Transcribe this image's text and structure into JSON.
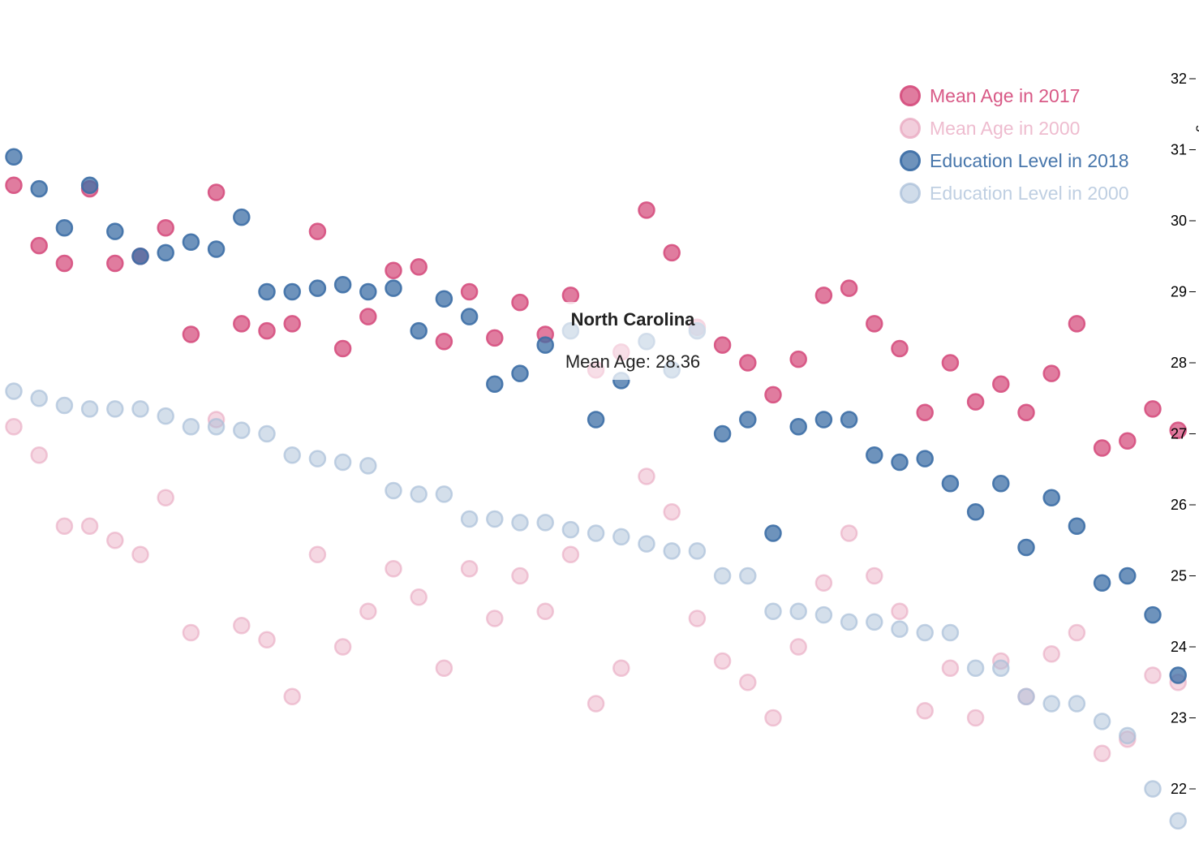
{
  "colors": {
    "mean_age_2017": "#d6507f",
    "mean_age_2000": "#e8a6bf",
    "education_2018": "#3d6fa6",
    "education_2000": "#a9bfd8",
    "axis": "#000000",
    "tooltip_text": "#222222"
  },
  "legend": {
    "items": [
      {
        "label": "Mean Age in 2017",
        "color": "#d6507f",
        "opacity": 0.75
      },
      {
        "label": "Mean Age in 2000",
        "color": "#e8a6bf",
        "opacity": 0.55
      },
      {
        "label": "Education Level in 2018",
        "color": "#3d6fa6",
        "opacity": 0.75
      },
      {
        "label": "Education Level in 2000",
        "color": "#a9bfd8",
        "opacity": 0.55
      }
    ]
  },
  "tooltip": {
    "state": "North Carolina",
    "text": "Mean Age: 28.36"
  },
  "chart_data": {
    "type": "scatter",
    "ylabel": "Mean Age",
    "y_ticks": [
      "22",
      "23",
      "24",
      "25",
      "26",
      "27",
      "28",
      "29",
      "30",
      "31",
      "32"
    ],
    "ylim": [
      21.5,
      32
    ],
    "x_count": 47,
    "series": [
      {
        "name": "Mean Age in 2017",
        "values": [
          30.5,
          29.65,
          29.4,
          30.45,
          29.4,
          29.5,
          29.9,
          28.4,
          30.4,
          28.55,
          28.45,
          28.55,
          29.85,
          28.2,
          28.65,
          29.3,
          29.35,
          28.3,
          29.0,
          28.35,
          28.85,
          28.4,
          28.95,
          27.9,
          28.15,
          30.15,
          29.55,
          28.5,
          28.25,
          28.0,
          27.55,
          28.05,
          28.95,
          29.05,
          28.55,
          28.2,
          27.3,
          28.0,
          27.45,
          27.7,
          27.3,
          27.85,
          28.55,
          26.8,
          26.9,
          27.35,
          27.05
        ]
      },
      {
        "name": "Mean Age in 2000",
        "values": [
          27.1,
          26.7,
          25.7,
          25.7,
          25.5,
          25.3,
          26.1,
          24.2,
          27.2,
          24.3,
          24.1,
          23.3,
          25.3,
          24.0,
          24.5,
          25.1,
          24.7,
          23.7,
          25.1,
          24.4,
          25.0,
          24.5,
          25.3,
          23.2,
          23.7,
          26.4,
          25.9,
          24.4,
          23.8,
          23.5,
          23.0,
          24.0,
          24.9,
          25.6,
          25.0,
          24.5,
          23.1,
          23.7,
          23.0,
          23.8,
          23.3,
          23.9,
          24.2,
          22.5,
          22.7,
          23.6,
          23.5
        ]
      },
      {
        "name": "Education Level in 2018",
        "values": [
          30.9,
          30.45,
          29.9,
          30.5,
          29.85,
          29.5,
          29.55,
          29.7,
          29.6,
          30.05,
          29.0,
          29.0,
          29.05,
          29.1,
          29.0,
          29.05,
          28.45,
          28.9,
          28.65,
          27.7,
          27.85,
          28.25,
          28.45,
          27.2,
          27.75,
          28.3,
          27.9,
          28.45,
          27.0,
          27.2,
          25.6,
          27.1,
          27.2,
          27.2,
          26.7,
          26.6,
          26.65,
          26.3,
          25.9,
          26.3,
          25.4,
          26.1,
          25.7,
          24.9,
          25.0,
          24.45,
          23.6
        ]
      },
      {
        "name": "Education Level in 2000",
        "values": [
          27.6,
          27.5,
          27.4,
          27.35,
          27.35,
          27.35,
          27.25,
          27.1,
          27.1,
          27.05,
          27.0,
          26.7,
          26.65,
          26.6,
          26.55,
          26.2,
          26.15,
          26.15,
          25.8,
          25.8,
          25.75,
          25.75,
          25.65,
          25.6,
          25.55,
          25.45,
          25.35,
          25.35,
          25.0,
          25.0,
          24.5,
          24.5,
          24.45,
          24.35,
          24.35,
          24.25,
          24.2,
          24.2,
          23.7,
          23.7,
          23.3,
          23.2,
          23.2,
          22.95,
          22.75,
          22.0,
          21.55
        ]
      }
    ],
    "highlight": {
      "state": "North Carolina",
      "series": "Mean Age in 2017",
      "value": 28.36
    },
    "legend_position": "top-right",
    "grid": false
  }
}
